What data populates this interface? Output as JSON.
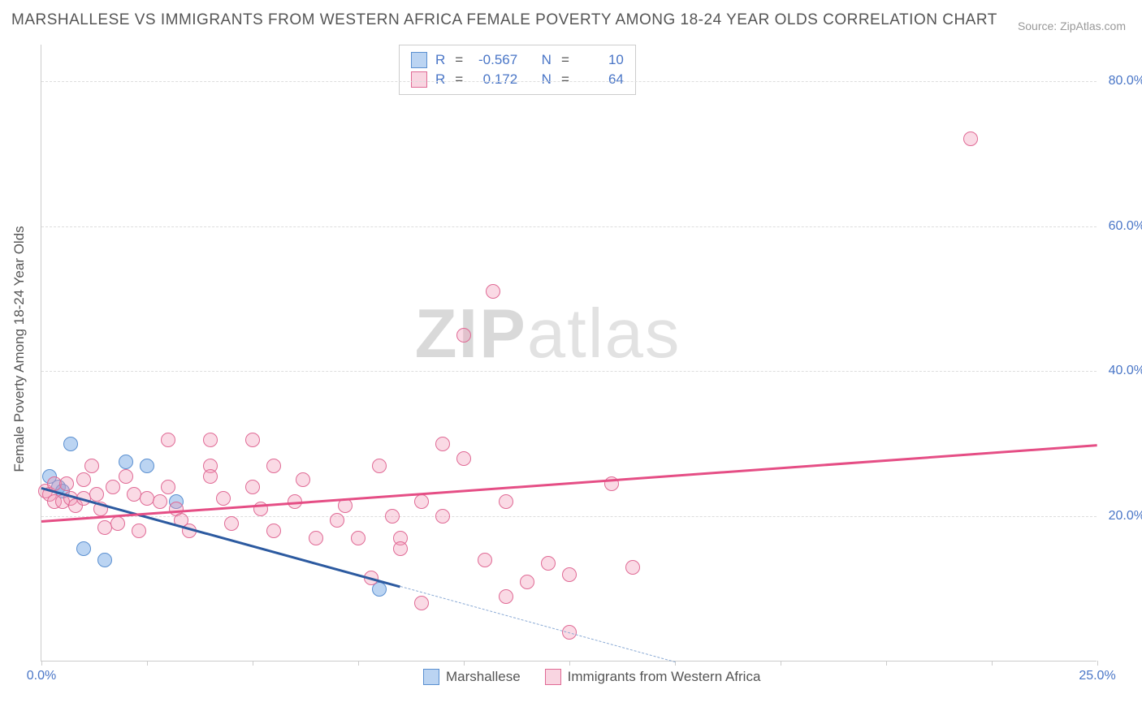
{
  "title": "MARSHALLESE VS IMMIGRANTS FROM WESTERN AFRICA FEMALE POVERTY AMONG 18-24 YEAR OLDS CORRELATION CHART",
  "source": "Source: ZipAtlas.com",
  "watermark_strong": "ZIP",
  "watermark_light": "atlas",
  "y_axis_label": "Female Poverty Among 18-24 Year Olds",
  "chart": {
    "type": "scatter",
    "xlim": [
      0,
      25
    ],
    "ylim": [
      0,
      85
    ],
    "x_ticks": [
      0,
      2.5,
      5,
      7.5,
      10,
      12.5,
      15,
      17.5,
      20,
      22.5,
      25
    ],
    "x_tick_labels": {
      "0": "0.0%",
      "25": "25.0%"
    },
    "y_ticks": [
      20,
      40,
      60,
      80
    ],
    "y_tick_labels": [
      "20.0%",
      "40.0%",
      "60.0%",
      "80.0%"
    ],
    "grid_color": "#dddddd",
    "background_color": "#ffffff",
    "series": [
      {
        "name": "Marshallese",
        "color_fill": "rgba(120,170,230,0.5)",
        "color_border": "#5a8fd0",
        "trend_color": "#2c5aa0",
        "R": "-0.567",
        "N": "10",
        "trend": {
          "x1": 0,
          "y1": 24,
          "x2": 15,
          "y2": 0,
          "solid_until_x": 8.5
        },
        "points": [
          [
            0.2,
            25.5
          ],
          [
            0.4,
            24
          ],
          [
            0.5,
            23.5
          ],
          [
            0.7,
            30
          ],
          [
            1.0,
            15.5
          ],
          [
            1.5,
            14
          ],
          [
            2.0,
            27.5
          ],
          [
            2.5,
            27
          ],
          [
            3.2,
            22
          ],
          [
            8.0,
            10
          ]
        ]
      },
      {
        "name": "Immigrants from Western Africa",
        "color_fill": "rgba(240,150,180,0.35)",
        "color_border": "#e06a95",
        "trend_color": "#e54e85",
        "R": "0.172",
        "N": "64",
        "trend": {
          "x1": 0,
          "y1": 19.5,
          "x2": 25,
          "y2": 30
        },
        "points": [
          [
            0.1,
            23.5
          ],
          [
            0.2,
            23
          ],
          [
            0.3,
            22
          ],
          [
            0.3,
            24.5
          ],
          [
            0.5,
            22
          ],
          [
            0.6,
            24.5
          ],
          [
            0.7,
            22.5
          ],
          [
            0.8,
            21.5
          ],
          [
            1.0,
            25
          ],
          [
            1.0,
            22.5
          ],
          [
            1.2,
            27
          ],
          [
            1.3,
            23
          ],
          [
            1.4,
            21
          ],
          [
            1.5,
            18.5
          ],
          [
            1.7,
            24
          ],
          [
            1.8,
            19
          ],
          [
            2.0,
            25.5
          ],
          [
            2.2,
            23
          ],
          [
            2.3,
            18
          ],
          [
            2.5,
            22.5
          ],
          [
            2.8,
            22
          ],
          [
            3.0,
            30.5
          ],
          [
            3.0,
            24
          ],
          [
            3.2,
            21
          ],
          [
            3.3,
            19.5
          ],
          [
            3.5,
            18
          ],
          [
            4.0,
            27
          ],
          [
            4.0,
            30.5
          ],
          [
            4.0,
            25.5
          ],
          [
            4.3,
            22.5
          ],
          [
            4.5,
            19
          ],
          [
            5.0,
            30.5
          ],
          [
            5.0,
            24
          ],
          [
            5.2,
            21
          ],
          [
            5.5,
            27
          ],
          [
            5.5,
            18
          ],
          [
            6.0,
            22
          ],
          [
            6.2,
            25
          ],
          [
            6.5,
            17
          ],
          [
            7.0,
            19.5
          ],
          [
            7.2,
            21.5
          ],
          [
            7.5,
            17
          ],
          [
            7.8,
            11.5
          ],
          [
            8.0,
            27
          ],
          [
            8.3,
            20
          ],
          [
            8.5,
            17
          ],
          [
            8.5,
            15.5
          ],
          [
            9.0,
            22
          ],
          [
            9.0,
            8
          ],
          [
            9.5,
            30
          ],
          [
            9.5,
            20
          ],
          [
            10.0,
            28
          ],
          [
            10.0,
            45
          ],
          [
            10.5,
            14
          ],
          [
            10.7,
            51
          ],
          [
            11.0,
            9
          ],
          [
            11.0,
            22
          ],
          [
            11.5,
            11
          ],
          [
            12.0,
            13.5
          ],
          [
            12.5,
            12
          ],
          [
            12.5,
            4
          ],
          [
            13.5,
            24.5
          ],
          [
            14.0,
            13
          ],
          [
            22.0,
            72
          ]
        ]
      }
    ]
  },
  "bottom_legend": [
    {
      "swatch": "blue",
      "label": "Marshallese"
    },
    {
      "swatch": "pink",
      "label": "Immigrants from Western Africa"
    }
  ],
  "stats_legend_labels": {
    "R": "R",
    "N": "N",
    "eq": "="
  }
}
